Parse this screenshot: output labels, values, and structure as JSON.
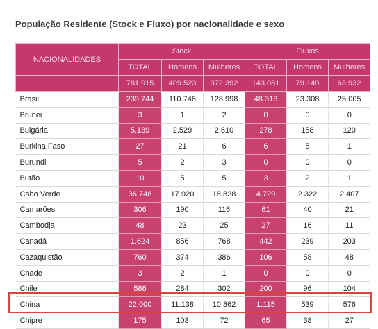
{
  "title": "População Residente (Stock e Fluxo) por nacionalidade e sexo",
  "table": {
    "header": {
      "group_column": "NACIONALIDADES",
      "groups": [
        "Stock",
        "Fluxos"
      ],
      "columns": [
        "TOTAL",
        "Homens",
        "Mulheres",
        "TOTAL",
        "Homens",
        "Mulheres"
      ],
      "totals": [
        "781.915",
        "409.523",
        "372.392",
        "143.081",
        "79.149",
        "63.932"
      ]
    },
    "rows": [
      [
        "Brasil",
        "239.744",
        "110.746",
        "128.998",
        "48.313",
        "23.308",
        "25.005"
      ],
      [
        "Brunei",
        "3",
        "1",
        "2",
        "0",
        "0",
        "0"
      ],
      [
        "Bulgária",
        "5.139",
        "2.529",
        "2.610",
        "278",
        "158",
        "120"
      ],
      [
        "Burkina Faso",
        "27",
        "21",
        "6",
        "6",
        "5",
        "1"
      ],
      [
        "Burundi",
        "5",
        "2",
        "3",
        "0",
        "0",
        "0"
      ],
      [
        "Butão",
        "10",
        "5",
        "5",
        "3",
        "2",
        "1"
      ],
      [
        "Cabo Verde",
        "36.748",
        "17.920",
        "18.828",
        "4.729",
        "2.322",
        "2.407"
      ],
      [
        "Camarões",
        "306",
        "190",
        "116",
        "61",
        "40",
        "21"
      ],
      [
        "Cambodja",
        "48",
        "23",
        "25",
        "27",
        "16",
        "11"
      ],
      [
        "Canadá",
        "1.624",
        "856",
        "768",
        "442",
        "239",
        "203"
      ],
      [
        "Cazaquistão",
        "760",
        "374",
        "386",
        "106",
        "58",
        "48"
      ],
      [
        "Chade",
        "3",
        "2",
        "1",
        "0",
        "0",
        "0"
      ],
      [
        "Chile",
        "586",
        "284",
        "302",
        "200",
        "96",
        "104"
      ],
      [
        "China",
        "22.000",
        "11.138",
        "10.862",
        "1.115",
        "539",
        "576"
      ],
      [
        "Chipre",
        "175",
        "103",
        "72",
        "65",
        "38",
        "27"
      ]
    ]
  }
}
